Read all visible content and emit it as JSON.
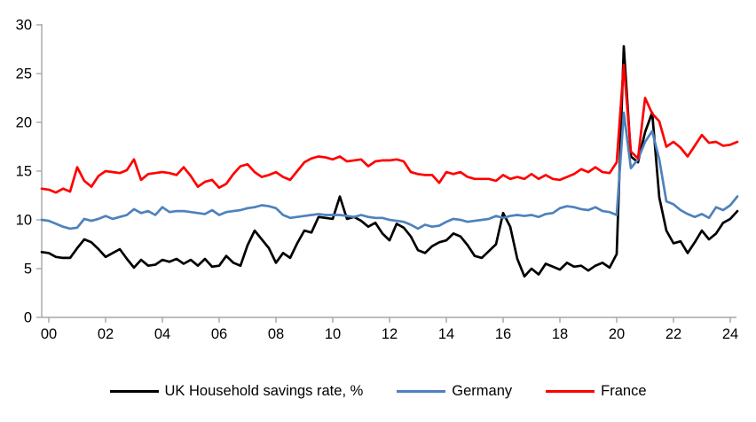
{
  "colors": {
    "background": "#ffffff",
    "axis": "#a6a6a6",
    "tick_text": "#000000",
    "uk_line": "#000000",
    "germany_line": "#4f81bd",
    "france_line": "#ff0000"
  },
  "chart_data": {
    "type": "line",
    "title": "",
    "xlabel": "",
    "ylabel": "",
    "grid": false,
    "legend_position": "bottom",
    "x_start": 1999.75,
    "x_step": 0.25,
    "x_axis": {
      "tick_years": [
        2000,
        2002,
        2004,
        2006,
        2008,
        2010,
        2012,
        2014,
        2016,
        2018,
        2020,
        2022,
        2024
      ],
      "tick_labels": [
        "00",
        "02",
        "04",
        "06",
        "08",
        "10",
        "12",
        "14",
        "16",
        "18",
        "20",
        "22",
        "24"
      ]
    },
    "y_axis": {
      "min": 0,
      "max": 30,
      "tick_step": 5,
      "tick_labels": [
        "0",
        "5",
        "10",
        "15",
        "20",
        "25",
        "30"
      ]
    },
    "series": [
      {
        "name": "UK Household savings rate, %",
        "color": "#000000",
        "values": [
          6.7,
          6.6,
          6.2,
          6.1,
          6.1,
          7.1,
          8.0,
          7.7,
          7.0,
          6.2,
          6.6,
          7.0,
          6.0,
          5.1,
          5.9,
          5.3,
          5.4,
          5.9,
          5.7,
          6.0,
          5.5,
          5.9,
          5.3,
          6.0,
          5.2,
          5.3,
          6.3,
          5.6,
          5.3,
          7.4,
          8.9,
          8.0,
          7.1,
          5.6,
          6.6,
          6.1,
          7.6,
          8.9,
          8.7,
          10.3,
          10.2,
          10.1,
          12.4,
          10.1,
          10.3,
          9.9,
          9.3,
          9.7,
          8.6,
          7.9,
          9.6,
          9.2,
          8.3,
          6.9,
          6.6,
          7.3,
          7.7,
          7.9,
          8.6,
          8.3,
          7.4,
          6.3,
          6.1,
          6.8,
          7.5,
          10.7,
          9.3,
          6.0,
          4.2,
          5.0,
          4.4,
          5.5,
          5.2,
          4.9,
          5.6,
          5.2,
          5.3,
          4.8,
          5.3,
          5.6,
          5.1,
          6.5,
          27.8,
          16.5,
          15.9,
          19.0,
          21.0,
          12.3,
          8.9,
          7.6,
          7.8,
          6.6,
          7.7,
          8.9,
          8.0,
          8.6,
          9.7,
          10.1,
          10.9
        ]
      },
      {
        "name": "Germany",
        "color": "#4f81bd",
        "values": [
          10.0,
          9.9,
          9.6,
          9.3,
          9.1,
          9.2,
          10.1,
          9.9,
          10.1,
          10.4,
          10.1,
          10.3,
          10.5,
          11.1,
          10.7,
          10.9,
          10.5,
          11.3,
          10.8,
          10.9,
          10.9,
          10.8,
          10.7,
          10.6,
          11.0,
          10.5,
          10.8,
          10.9,
          11.0,
          11.2,
          11.3,
          11.5,
          11.4,
          11.2,
          10.5,
          10.2,
          10.3,
          10.4,
          10.5,
          10.6,
          10.5,
          10.5,
          10.5,
          10.4,
          10.3,
          10.5,
          10.3,
          10.2,
          10.2,
          10.0,
          9.9,
          9.8,
          9.5,
          9.1,
          9.5,
          9.3,
          9.4,
          9.8,
          10.1,
          10.0,
          9.8,
          9.9,
          10.0,
          10.1,
          10.4,
          10.2,
          10.4,
          10.5,
          10.4,
          10.5,
          10.3,
          10.6,
          10.7,
          11.2,
          11.4,
          11.3,
          11.1,
          11.0,
          11.3,
          10.9,
          10.8,
          10.5,
          21.0,
          15.3,
          16.2,
          18.0,
          19.1,
          16.2,
          11.9,
          11.6,
          11.0,
          10.6,
          10.3,
          10.6,
          10.2,
          11.3,
          11.0,
          11.5,
          12.4
        ]
      },
      {
        "name": "France",
        "color": "#ff0000",
        "values": [
          13.2,
          13.1,
          12.8,
          13.2,
          12.9,
          15.4,
          14.0,
          13.4,
          14.5,
          15.0,
          14.9,
          14.8,
          15.1,
          16.2,
          14.1,
          14.7,
          14.8,
          14.9,
          14.8,
          14.6,
          15.4,
          14.5,
          13.4,
          13.9,
          14.1,
          13.3,
          13.7,
          14.7,
          15.5,
          15.7,
          14.9,
          14.4,
          14.6,
          14.9,
          14.4,
          14.1,
          15.0,
          15.9,
          16.3,
          16.5,
          16.4,
          16.2,
          16.5,
          16.0,
          16.1,
          16.2,
          15.5,
          16.0,
          16.1,
          16.1,
          16.2,
          16.0,
          14.9,
          14.7,
          14.6,
          14.6,
          13.8,
          14.9,
          14.7,
          14.9,
          14.4,
          14.2,
          14.2,
          14.2,
          14.0,
          14.6,
          14.2,
          14.4,
          14.2,
          14.7,
          14.2,
          14.6,
          14.2,
          14.1,
          14.4,
          14.7,
          15.2,
          14.9,
          15.4,
          14.9,
          14.8,
          15.9,
          25.9,
          17.0,
          16.3,
          22.5,
          20.9,
          20.1,
          17.5,
          18.0,
          17.4,
          16.5,
          17.6,
          18.7,
          17.9,
          18.0,
          17.6,
          17.7,
          18.0
        ]
      }
    ]
  },
  "legend": {
    "uk_label": "UK Household savings rate, %",
    "germany_label": "Germany",
    "france_label": "France"
  }
}
